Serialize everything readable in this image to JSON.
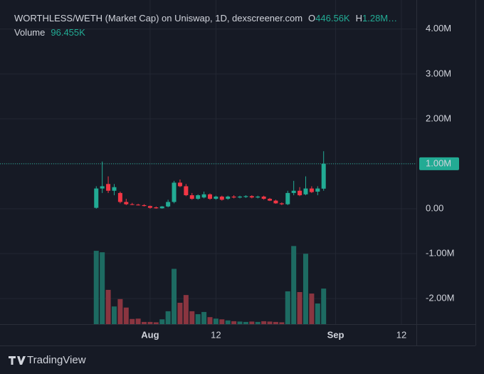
{
  "chart_data": {
    "type": "candlestick",
    "title": "WORTHLESS/WETH (Market Cap) on Uniswap, 1D, dexscreener.com",
    "ohlc_legend": [
      {
        "key": "O",
        "value": "446.56K"
      },
      {
        "key": "H",
        "value": "1.28M…"
      }
    ],
    "volume_label": "Volume",
    "volume_value": "96.455K",
    "brand": "TradingView",
    "x": [
      0,
      1,
      2,
      3,
      4,
      5,
      6,
      7,
      8,
      9,
      10,
      11,
      12,
      13,
      14,
      15,
      16,
      17,
      18,
      19,
      20,
      21,
      22,
      23,
      24,
      25,
      26,
      27,
      28,
      29,
      30,
      31,
      32,
      33,
      34,
      35,
      36,
      37,
      38
    ],
    "xlim": [
      -14.9,
      53.5
    ],
    "xticks": [
      {
        "value": 9,
        "label": "Aug"
      },
      {
        "value": 20,
        "label": "12"
      },
      {
        "value": 40,
        "label": "Sep"
      },
      {
        "value": 51,
        "label": "12"
      }
    ],
    "open": [
      20000,
      450000,
      550000,
      400000,
      350000,
      150000,
      100000,
      90000,
      80000,
      60000,
      30000,
      10000,
      50000,
      150000,
      580000,
      500000,
      300000,
      220000,
      250000,
      320000,
      220000,
      270000,
      220000,
      270000,
      250000,
      260000,
      280000,
      250000,
      270000,
      220000,
      180000,
      120000,
      100000,
      350000,
      400000,
      320000,
      450000,
      380000,
      446560
    ],
    "high": [
      500000,
      1050000,
      720000,
      550000,
      380000,
      220000,
      130000,
      110000,
      100000,
      70000,
      50000,
      60000,
      200000,
      620000,
      650000,
      550000,
      350000,
      320000,
      380000,
      340000,
      290000,
      290000,
      290000,
      300000,
      290000,
      300000,
      300000,
      290000,
      290000,
      240000,
      200000,
      140000,
      400000,
      620000,
      480000,
      720000,
      500000,
      500000,
      1280000
    ],
    "low": [
      0,
      350000,
      350000,
      300000,
      120000,
      80000,
      80000,
      70000,
      50000,
      0,
      0,
      0,
      30000,
      120000,
      480000,
      280000,
      200000,
      200000,
      230000,
      200000,
      200000,
      180000,
      200000,
      230000,
      230000,
      240000,
      230000,
      230000,
      200000,
      170000,
      110000,
      80000,
      80000,
      300000,
      280000,
      300000,
      350000,
      300000,
      400000
    ],
    "close": [
      450000,
      500000,
      400000,
      480000,
      150000,
      100000,
      90000,
      80000,
      60000,
      20000,
      10000,
      50000,
      150000,
      580000,
      500000,
      300000,
      220000,
      300000,
      320000,
      220000,
      270000,
      200000,
      270000,
      250000,
      270000,
      280000,
      250000,
      270000,
      220000,
      180000,
      120000,
      100000,
      350000,
      400000,
      300000,
      450000,
      370000,
      450000,
      1000000
    ],
    "volume": [
      199000,
      195000,
      93000,
      48000,
      68000,
      45000,
      14000,
      15000,
      6000,
      6000,
      5000,
      13000,
      35000,
      150000,
      58000,
      79000,
      35000,
      27000,
      33000,
      19000,
      15000,
      13000,
      10000,
      8000,
      7000,
      6000,
      7000,
      6000,
      8000,
      7000,
      6000,
      5000,
      89000,
      212000,
      87000,
      191000,
      83000,
      56000,
      96455
    ],
    "ylim": [
      -2570000,
      4520000
    ],
    "yticks": [
      {
        "value": 4000000,
        "label": "4.00M"
      },
      {
        "value": 3000000,
        "label": "3.00M"
      },
      {
        "value": 2000000,
        "label": "2.00M"
      },
      {
        "value": 1000000,
        "label": "1.00M"
      },
      {
        "value": 0,
        "label": "0.00"
      },
      {
        "value": -1000000,
        "label": "-1.00M"
      },
      {
        "value": -2000000,
        "label": "-2.00M"
      }
    ],
    "volume_ylim": [
      0,
      232000
    ],
    "price_line": {
      "value": 1000000,
      "label": "1.00M"
    },
    "up_color": "#22ab94",
    "down_color": "#f23645",
    "up_volume_color": "#1d6b62",
    "down_volume_color": "#8a3540",
    "grid": true
  }
}
